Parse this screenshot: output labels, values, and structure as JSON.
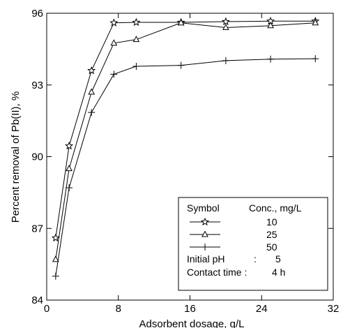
{
  "chart_data": {
    "type": "line",
    "xlabel": "Adsorbent dosage, g/L",
    "ylabel": "Percent removal of Pb(II), %",
    "xlim": [
      0,
      32
    ],
    "ylim": [
      84,
      96
    ],
    "xticks": [
      0,
      8,
      16,
      24,
      32
    ],
    "yticks": [
      84,
      87,
      90,
      93,
      96
    ],
    "grid": false,
    "legend_position": "bottom-right",
    "x": [
      1,
      2.5,
      5,
      7.5,
      10,
      15,
      20,
      25,
      30
    ],
    "series": [
      {
        "name": "10",
        "marker": "star",
        "values": [
          86.6,
          90.45,
          93.6,
          95.6,
          95.62,
          95.62,
          95.65,
          95.67,
          95.67
        ]
      },
      {
        "name": "25",
        "marker": "triangle",
        "values": [
          85.7,
          89.5,
          92.7,
          94.75,
          94.9,
          95.6,
          95.4,
          95.48,
          95.6
        ]
      },
      {
        "name": "50",
        "marker": "plus",
        "values": [
          85.0,
          88.7,
          91.85,
          93.45,
          93.78,
          93.82,
          94.02,
          94.08,
          94.1
        ]
      }
    ]
  },
  "legend": {
    "symbol_header": "Symbol",
    "conc_header": "Conc., mg/L",
    "ph_label": "Initial pH",
    "ph_sep": ":",
    "ph_value": "5",
    "time_label": "Contact time :",
    "time_value": "4 h"
  }
}
